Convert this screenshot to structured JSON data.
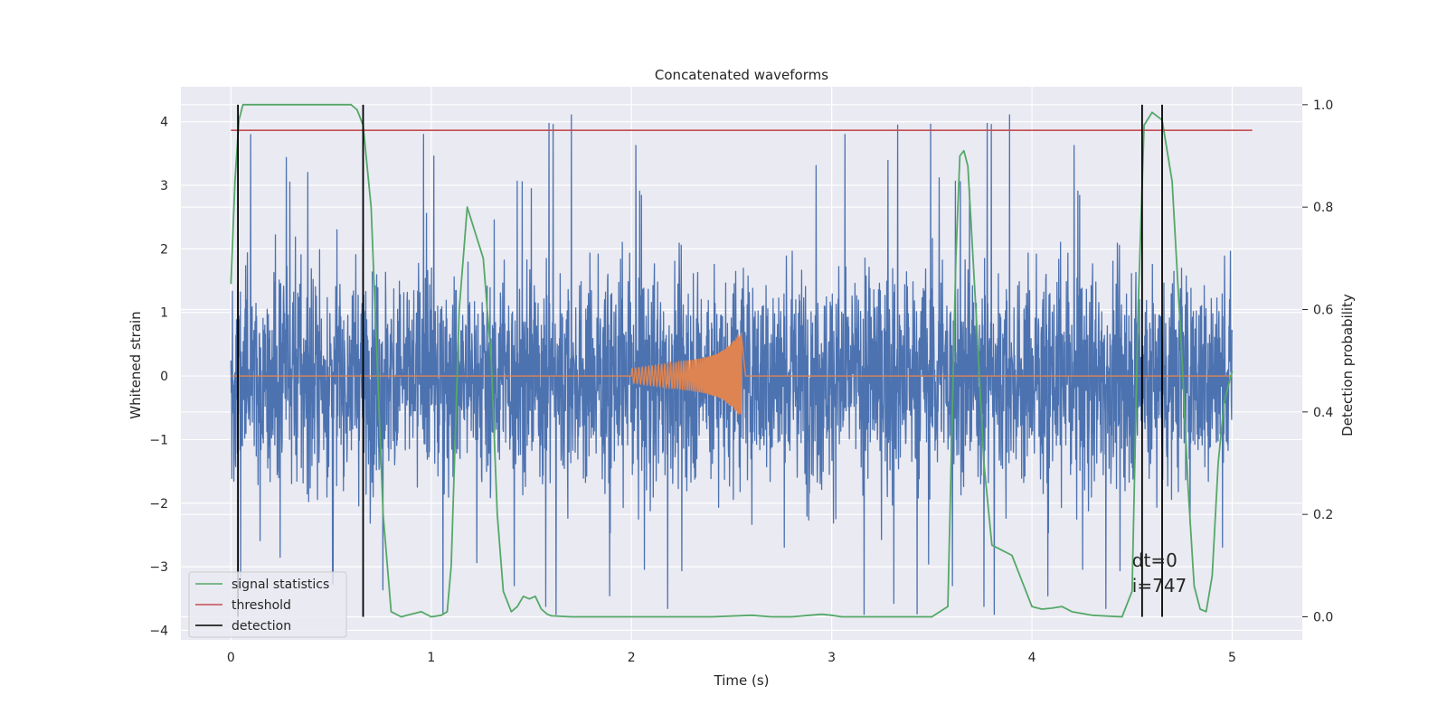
{
  "chart_data": {
    "type": "line",
    "title": "Concatenated waveforms",
    "xlabel": "Time (s)",
    "ylabel": "Whitened strain",
    "y2label": "Detection probability",
    "xlim": [
      -0.25,
      5.35
    ],
    "ylim": [
      -4.15,
      4.55
    ],
    "y2lim": [
      -0.045,
      1.035
    ],
    "xticks": [
      0,
      1,
      2,
      3,
      4,
      5
    ],
    "yticks": [
      -4,
      -3,
      -2,
      -1,
      0,
      1,
      2,
      3,
      4
    ],
    "y2ticks": [
      0.0,
      0.2,
      0.4,
      0.6,
      0.8,
      1.0
    ],
    "xtick_labels": [
      "0",
      "1",
      "2",
      "3",
      "4",
      "5"
    ],
    "ytick_labels": [
      "−4",
      "−3",
      "−2",
      "−1",
      "0",
      "1",
      "2",
      "3",
      "4"
    ],
    "y2tick_labels": [
      "0.0",
      "0.2",
      "0.4",
      "0.6",
      "0.8",
      "1.0"
    ],
    "grid": true,
    "legend_placement": "lower-left",
    "colors": {
      "background": "#eaeaf2",
      "grid": "#ffffff",
      "strain": "#4c72b0",
      "template": "#dd8452",
      "signal": "#55a868",
      "threshold": "#c44e52",
      "detection": "#000000"
    },
    "series": [
      {
        "name": "",
        "axis": "left",
        "kind": "noise",
        "x_range": [
          0,
          5
        ],
        "amplitude_range": [
          -3.75,
          4.35
        ]
      },
      {
        "name": "",
        "axis": "left",
        "kind": "chirp",
        "x_range": [
          2.0,
          2.55
        ],
        "peak_amplitude": [
          -0.7,
          0.75
        ]
      },
      {
        "name": "signal statistics",
        "axis": "right",
        "x": [
          0.0,
          0.02,
          0.04,
          0.06,
          0.08,
          0.1,
          0.2,
          0.4,
          0.6,
          0.63,
          0.66,
          0.7,
          0.73,
          0.76,
          0.8,
          0.85,
          0.9,
          0.95,
          1.0,
          1.05,
          1.08,
          1.1,
          1.14,
          1.18,
          1.22,
          1.26,
          1.3,
          1.33,
          1.36,
          1.4,
          1.43,
          1.46,
          1.49,
          1.52,
          1.55,
          1.58,
          1.6,
          1.7,
          2.0,
          2.4,
          2.6,
          2.7,
          2.8,
          2.95,
          3.0,
          3.05,
          3.2,
          3.5,
          3.58,
          3.62,
          3.64,
          3.66,
          3.68,
          3.72,
          3.76,
          3.8,
          3.85,
          3.9,
          3.95,
          4.0,
          4.05,
          4.1,
          4.15,
          4.2,
          4.3,
          4.45,
          4.5,
          4.53,
          4.56,
          4.6,
          4.65,
          4.7,
          4.75,
          4.78,
          4.81,
          4.84,
          4.87,
          4.9,
          4.93,
          4.96,
          5.0
        ],
        "values": [
          0.65,
          0.85,
          0.97,
          1.0,
          1.0,
          1.0,
          1.0,
          1.0,
          1.0,
          0.99,
          0.96,
          0.8,
          0.5,
          0.2,
          0.01,
          0.0,
          0.005,
          0.01,
          0.0,
          0.003,
          0.01,
          0.1,
          0.6,
          0.8,
          0.75,
          0.7,
          0.5,
          0.2,
          0.05,
          0.01,
          0.02,
          0.04,
          0.035,
          0.04,
          0.015,
          0.005,
          0.002,
          0.0,
          0.0,
          0.0,
          0.003,
          0.0,
          0.0,
          0.005,
          0.003,
          0.0,
          0.0,
          0.0,
          0.02,
          0.7,
          0.9,
          0.91,
          0.88,
          0.6,
          0.3,
          0.14,
          0.13,
          0.12,
          0.07,
          0.02,
          0.015,
          0.017,
          0.02,
          0.01,
          0.003,
          0.0,
          0.05,
          0.6,
          0.96,
          0.985,
          0.97,
          0.85,
          0.5,
          0.25,
          0.06,
          0.015,
          0.01,
          0.08,
          0.3,
          0.42,
          0.48
        ]
      },
      {
        "name": "threshold",
        "axis": "right",
        "x": [
          0.0,
          5.1
        ],
        "values": [
          0.95,
          0.95
        ]
      },
      {
        "name": "detection",
        "axis": "right",
        "kind": "vertical-lines",
        "x": [
          0.035,
          0.66,
          4.55,
          4.65
        ],
        "range": [
          0.0,
          1.0
        ]
      }
    ],
    "annotations": [
      {
        "text": "dt=0",
        "x": 4.5,
        "y": -3.0
      },
      {
        "text": "i=747",
        "x": 4.5,
        "y": -3.4
      }
    ]
  }
}
